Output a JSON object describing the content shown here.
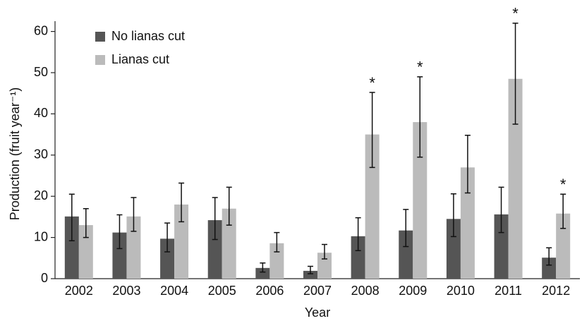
{
  "chart_data": {
    "type": "bar",
    "x_label": "Year",
    "y_label": "Production (fruit year⁻¹)",
    "categories": [
      "2002",
      "2003",
      "2004",
      "2005",
      "2006",
      "2007",
      "2008",
      "2009",
      "2010",
      "2011",
      "2012"
    ],
    "series": [
      {
        "name": "No lianas cut",
        "color": "#555555",
        "values": [
          15.1,
          11.2,
          9.7,
          14.2,
          2.6,
          1.9,
          10.3,
          11.7,
          14.5,
          15.6,
          5.1
        ],
        "lower": [
          9.2,
          7.3,
          6.5,
          9.5,
          1.6,
          1.2,
          6.8,
          7.8,
          10.2,
          11.2,
          3.3
        ],
        "upper": [
          20.5,
          15.5,
          13.5,
          19.7,
          3.8,
          3.0,
          14.8,
          16.8,
          20.6,
          22.2,
          7.5
        ]
      },
      {
        "name": "Lianas cut",
        "color": "#bbbbbb",
        "values": [
          13.0,
          15.1,
          18.0,
          17.0,
          8.6,
          6.3,
          35.0,
          38.0,
          27.0,
          48.5,
          15.8
        ],
        "lower": [
          10.0,
          11.5,
          13.8,
          13.0,
          6.5,
          4.8,
          27.0,
          29.5,
          20.8,
          37.5,
          12.2
        ],
        "upper": [
          17.0,
          19.7,
          23.2,
          22.2,
          11.2,
          8.3,
          45.2,
          49.0,
          34.8,
          62.0,
          20.5
        ]
      }
    ],
    "annotations": [
      {
        "text": "*",
        "category": "2008",
        "series": "Lianas cut"
      },
      {
        "text": "*",
        "category": "2009",
        "series": "Lianas cut"
      },
      {
        "text": "*",
        "category": "2011",
        "series": "Lianas cut"
      },
      {
        "text": "*",
        "category": "2012",
        "series": "Lianas cut"
      }
    ],
    "ylim": [
      0,
      62.5
    ],
    "yticks": [
      0,
      10,
      20,
      30,
      40,
      50,
      60
    ],
    "grid": false,
    "legend": "upper left"
  }
}
